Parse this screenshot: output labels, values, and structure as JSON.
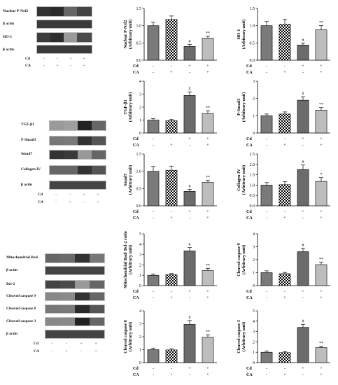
{
  "conditions": {
    "row_labels": [
      "Cd",
      "CA"
    ],
    "signs": [
      [
        "-",
        "-",
        "+",
        "+"
      ],
      [
        "-",
        "+",
        "-",
        "+"
      ]
    ]
  },
  "blots": {
    "panel_a": [
      "Nuclear P-Nrf2",
      "β actin",
      "HO-1",
      "β actin"
    ],
    "panel_b": [
      "TGF-β1",
      "P-Smad3",
      "Smad7",
      "Collagen IV",
      "β actin"
    ],
    "panel_c": [
      "Mitochondrial Bad",
      "β actin",
      "Bcl-2",
      "Cleaved caspase 9",
      "Cleaved caspase 8",
      "Cleaved caspase 3",
      "β actin"
    ]
  },
  "chart_data": [
    {
      "type": "bar",
      "ylabel": "Nuclear P-Nrf2 (Arbitrary unit)",
      "ylim": [
        0,
        1.5
      ],
      "yticks": [
        "0.0",
        "0.5",
        "1.0",
        "1.5"
      ],
      "values": [
        1.0,
        1.18,
        0.4,
        0.64
      ],
      "errors": [
        0.1,
        0.1,
        0.06,
        0.06
      ],
      "marks": [
        "",
        "",
        "#",
        "**"
      ]
    },
    {
      "type": "bar",
      "ylabel": "HO-1 (Arbitrary unit)",
      "ylim": [
        0,
        1.5
      ],
      "yticks": [
        "0.0",
        "0.5",
        "1.0",
        "1.5"
      ],
      "values": [
        1.0,
        1.04,
        0.44,
        0.88
      ],
      "errors": [
        0.12,
        0.14,
        0.06,
        0.12
      ],
      "marks": [
        "",
        "",
        "#",
        "**"
      ]
    },
    {
      "type": "bar",
      "ylabel": "TGF-β1 (Arbitrary unit)",
      "ylim": [
        0,
        4
      ],
      "yticks": [
        "0",
        "1",
        "2",
        "3",
        "4"
      ],
      "values": [
        1.0,
        0.95,
        2.9,
        1.5
      ],
      "errors": [
        0.12,
        0.1,
        0.28,
        0.22
      ],
      "marks": [
        "",
        "",
        "#",
        "**"
      ]
    },
    {
      "type": "bar",
      "ylabel": "P-Smad3 (Arbitrary unit)",
      "ylim": [
        0,
        3
      ],
      "yticks": [
        "0",
        "1",
        "2",
        "3"
      ],
      "values": [
        1.0,
        1.1,
        1.9,
        1.32
      ],
      "errors": [
        0.1,
        0.12,
        0.2,
        0.15
      ],
      "marks": [
        "",
        "",
        "#",
        "**"
      ]
    },
    {
      "type": "bar",
      "ylabel": "Smad7 (Arbitrary unit)",
      "ylim": [
        0,
        1.5
      ],
      "yticks": [
        "0.0",
        "0.5",
        "1.0",
        "1.5"
      ],
      "values": [
        1.0,
        1.03,
        0.42,
        0.68
      ],
      "errors": [
        0.14,
        0.12,
        0.06,
        0.06
      ],
      "marks": [
        "",
        "",
        "#",
        "**"
      ]
    },
    {
      "type": "bar",
      "ylabel": "Collagen IV (Arbitrary unit)",
      "ylim": [
        0,
        2.5
      ],
      "yticks": [
        "0.0",
        "0.5",
        "1.0",
        "1.5",
        "2.0",
        "2.5"
      ],
      "values": [
        1.0,
        1.02,
        1.75,
        1.18
      ],
      "errors": [
        0.12,
        0.14,
        0.22,
        0.18
      ],
      "marks": [
        "",
        "",
        "#",
        "*"
      ]
    },
    {
      "type": "bar",
      "ylabel": "Mitochondrial Bad/ Bcl-2 ratio (Arbitrary unit)",
      "ylim": [
        0,
        5
      ],
      "yticks": [
        "0",
        "1",
        "2",
        "3",
        "4",
        "5"
      ],
      "values": [
        1.0,
        1.05,
        3.35,
        1.45
      ],
      "errors": [
        0.12,
        0.12,
        0.32,
        0.22
      ],
      "marks": [
        "",
        "",
        "#",
        "**"
      ]
    },
    {
      "type": "bar",
      "ylabel": "Cleaved caspase 9 (Arbitrary unit)",
      "ylim": [
        0,
        4
      ],
      "yticks": [
        "0",
        "1",
        "2",
        "3",
        "4"
      ],
      "values": [
        1.0,
        0.92,
        2.62,
        1.62
      ],
      "errors": [
        0.14,
        0.1,
        0.26,
        0.2
      ],
      "marks": [
        "",
        "",
        "#",
        "**"
      ]
    },
    {
      "type": "bar",
      "ylabel": "Cleaved caspase 8 (Arbitrary unit)",
      "ylim": [
        0,
        4
      ],
      "yticks": [
        "0",
        "1",
        "2",
        "3",
        "4"
      ],
      "values": [
        1.0,
        0.98,
        2.95,
        1.95
      ],
      "errors": [
        0.12,
        0.1,
        0.3,
        0.2
      ],
      "marks": [
        "",
        "",
        "#",
        "**"
      ]
    },
    {
      "type": "bar",
      "ylabel": "Cleaved caspase 3 (Arbitrary unit)",
      "ylim": [
        0,
        5
      ],
      "yticks": [
        "0",
        "1",
        "2",
        "3",
        "4",
        "5"
      ],
      "values": [
        1.0,
        0.96,
        3.4,
        1.45
      ],
      "errors": [
        0.12,
        0.1,
        0.3,
        0.14
      ],
      "marks": [
        "",
        "",
        "#",
        "**"
      ]
    }
  ]
}
